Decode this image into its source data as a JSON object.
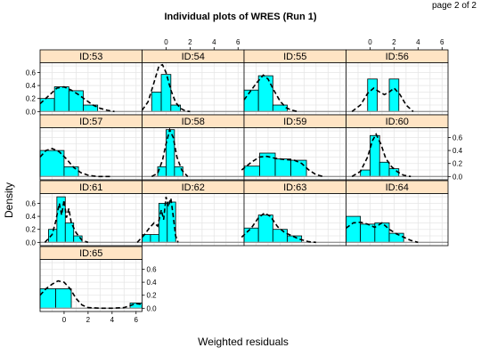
{
  "page_label": "page 2 of 2",
  "chart_data": {
    "type": "histogram-density-panels",
    "title": "Individual plots of WRES (Run 1)",
    "xlabel": "Weighted residuals",
    "ylabel": "Density",
    "xlim": [
      -2,
      6.5
    ],
    "ylim": [
      -0.05,
      0.75
    ],
    "x_ticks": [
      0,
      2,
      4,
      6
    ],
    "y_ticks": [
      0.0,
      0.2,
      0.4,
      0.6
    ],
    "bin_edges": [
      -2,
      -1,
      0,
      1,
      2,
      3,
      4,
      5,
      6,
      7
    ],
    "colors": {
      "bar": "#00ffff",
      "strip": "#ffe4c4",
      "density": "#000000",
      "grid": "#e6e6e6"
    },
    "panels": [
      {
        "id": "ID:53",
        "bins": [
          {
            "x0": -2,
            "x1": -0.8,
            "d": 0.2
          },
          {
            "x0": -0.8,
            "x1": 0.4,
            "d": 0.38
          },
          {
            "x0": 0.4,
            "x1": 1.6,
            "d": 0.32
          },
          {
            "x0": 1.6,
            "x1": 2.8,
            "d": 0.1
          }
        ],
        "density": [
          [
            -2,
            0.12
          ],
          [
            -1.3,
            0.24
          ],
          [
            -0.6,
            0.36
          ],
          [
            0,
            0.38
          ],
          [
            0.6,
            0.33
          ],
          [
            1.2,
            0.26
          ],
          [
            1.8,
            0.18
          ],
          [
            2.4,
            0.1
          ],
          [
            3,
            0.05
          ],
          [
            3.6,
            0.02
          ],
          [
            4.2,
            0.0
          ]
        ]
      },
      {
        "id": "ID:54",
        "bins": [
          {
            "x0": -1.2,
            "x1": -0.4,
            "d": 0.3
          },
          {
            "x0": -0.4,
            "x1": 0.4,
            "d": 0.57
          },
          {
            "x0": 0.4,
            "x1": 1.2,
            "d": 0.1
          }
        ],
        "density": [
          [
            -2,
            0.02
          ],
          [
            -1.5,
            0.15
          ],
          [
            -1.0,
            0.45
          ],
          [
            -0.6,
            0.7
          ],
          [
            -0.3,
            0.72
          ],
          [
            0,
            0.6
          ],
          [
            0.4,
            0.33
          ],
          [
            0.8,
            0.14
          ],
          [
            1.2,
            0.05
          ],
          [
            1.6,
            0.01
          ],
          [
            2,
            0.0
          ]
        ]
      },
      {
        "id": "ID:55",
        "bins": [
          {
            "x0": -2,
            "x1": -0.8,
            "d": 0.33
          },
          {
            "x0": -0.8,
            "x1": 0.4,
            "d": 0.55
          },
          {
            "x0": 0.4,
            "x1": 1.6,
            "d": 0.1
          }
        ],
        "density": [
          [
            -2,
            0.18
          ],
          [
            -1.6,
            0.28
          ],
          [
            -1.0,
            0.43
          ],
          [
            -0.4,
            0.56
          ],
          [
            0,
            0.5
          ],
          [
            0.5,
            0.32
          ],
          [
            1,
            0.16
          ],
          [
            1.5,
            0.06
          ],
          [
            2,
            0.02
          ],
          [
            2.5,
            0.0
          ]
        ]
      },
      {
        "id": "ID:56",
        "bins": [
          {
            "x0": -0.2,
            "x1": 0.6,
            "d": 0.5
          },
          {
            "x0": 1.6,
            "x1": 2.4,
            "d": 0.5
          }
        ],
        "density": [
          [
            -1.5,
            0.0
          ],
          [
            -0.8,
            0.1
          ],
          [
            -0.2,
            0.28
          ],
          [
            0.3,
            0.36
          ],
          [
            0.8,
            0.3
          ],
          [
            1.2,
            0.26
          ],
          [
            1.6,
            0.3
          ],
          [
            2.0,
            0.36
          ],
          [
            2.5,
            0.26
          ],
          [
            3.0,
            0.1
          ],
          [
            3.6,
            0.0
          ]
        ]
      },
      {
        "id": "ID:57",
        "bins": [
          {
            "x0": -2,
            "x1": 0,
            "d": 0.4
          },
          {
            "x0": 0,
            "x1": 1.2,
            "d": 0.15
          }
        ],
        "density": [
          [
            -2,
            0.3
          ],
          [
            -1.5,
            0.4
          ],
          [
            -1.0,
            0.43
          ],
          [
            -0.4,
            0.38
          ],
          [
            0.2,
            0.27
          ],
          [
            0.8,
            0.14
          ],
          [
            1.4,
            0.06
          ],
          [
            2,
            0.02
          ],
          [
            2.8,
            0.0
          ],
          [
            4,
            0.0
          ]
        ]
      },
      {
        "id": "ID:58",
        "bins": [
          {
            "x0": -0.7,
            "x1": 0,
            "d": 0.15
          },
          {
            "x0": 0,
            "x1": 0.7,
            "d": 0.72
          },
          {
            "x0": 0.7,
            "x1": 1.4,
            "d": 0.15
          }
        ],
        "density": [
          [
            -1.2,
            0.0
          ],
          [
            -0.7,
            0.05
          ],
          [
            -0.3,
            0.25
          ],
          [
            0,
            0.5
          ],
          [
            0.3,
            0.72
          ],
          [
            0.6,
            0.6
          ],
          [
            0.9,
            0.3
          ],
          [
            1.3,
            0.1
          ],
          [
            1.8,
            0.0
          ]
        ]
      },
      {
        "id": "ID:59",
        "bins": [
          {
            "x0": -2,
            "x1": -0.7,
            "d": 0.16
          },
          {
            "x0": -0.7,
            "x1": 0.6,
            "d": 0.36
          },
          {
            "x0": 0.6,
            "x1": 1.9,
            "d": 0.27
          },
          {
            "x0": 1.9,
            "x1": 3.2,
            "d": 0.25
          }
        ],
        "density": [
          [
            -2.2,
            0.1
          ],
          [
            -1.4,
            0.22
          ],
          [
            -0.7,
            0.3
          ],
          [
            -0.1,
            0.31
          ],
          [
            0.6,
            0.28
          ],
          [
            1.4,
            0.26
          ],
          [
            2.2,
            0.25
          ],
          [
            2.8,
            0.2
          ],
          [
            3.4,
            0.1
          ],
          [
            4.0,
            0.03
          ],
          [
            4.6,
            0.0
          ]
        ]
      },
      {
        "id": "ID:60",
        "bins": [
          {
            "x0": -0.8,
            "x1": 0,
            "d": 0.1
          },
          {
            "x0": 0,
            "x1": 0.8,
            "d": 0.63
          },
          {
            "x0": 0.8,
            "x1": 1.6,
            "d": 0.22
          },
          {
            "x0": 1.6,
            "x1": 2.4,
            "d": 0.12
          }
        ],
        "density": [
          [
            -1.5,
            0.0
          ],
          [
            -0.8,
            0.08
          ],
          [
            -0.2,
            0.3
          ],
          [
            0.2,
            0.55
          ],
          [
            0.5,
            0.65
          ],
          [
            0.9,
            0.5
          ],
          [
            1.3,
            0.28
          ],
          [
            1.8,
            0.15
          ],
          [
            2.3,
            0.07
          ],
          [
            2.8,
            0.02
          ],
          [
            3.4,
            0.0
          ]
        ]
      },
      {
        "id": "ID:61",
        "bins": [
          {
            "x0": -1.3,
            "x1": -0.6,
            "d": 0.2
          },
          {
            "x0": -0.6,
            "x1": 0.1,
            "d": 0.7
          },
          {
            "x0": 0.1,
            "x1": 0.8,
            "d": 0.3
          },
          {
            "x0": 0.8,
            "x1": 1.5,
            "d": 0.1
          }
        ],
        "density": [
          [
            -1.6,
            0.0
          ],
          [
            -1.0,
            0.12
          ],
          [
            -0.7,
            0.32
          ],
          [
            -0.4,
            0.6
          ],
          [
            -0.2,
            0.42
          ],
          [
            0,
            0.65
          ],
          [
            0.2,
            0.38
          ],
          [
            0.4,
            0.52
          ],
          [
            0.6,
            0.3
          ],
          [
            1.0,
            0.15
          ],
          [
            1.5,
            0.03
          ],
          [
            2,
            0.0
          ]
        ]
      },
      {
        "id": "ID:62",
        "bins": [
          {
            "x0": -2,
            "x1": -1.3,
            "d": 0.12
          },
          {
            "x0": -1.3,
            "x1": -0.6,
            "d": 0.12
          },
          {
            "x0": -0.6,
            "x1": 0.1,
            "d": 0.6
          },
          {
            "x0": 0.1,
            "x1": 0.8,
            "d": 0.62
          }
        ],
        "density": [
          [
            -2.4,
            0.0
          ],
          [
            -1.8,
            0.12
          ],
          [
            -1.4,
            0.22
          ],
          [
            -1.0,
            0.3
          ],
          [
            -0.7,
            0.25
          ],
          [
            -0.4,
            0.5
          ],
          [
            -0.2,
            0.35
          ],
          [
            0,
            0.7
          ],
          [
            0.2,
            0.55
          ],
          [
            0.4,
            0.68
          ],
          [
            0.6,
            0.4
          ],
          [
            0.8,
            0.1
          ],
          [
            1.0,
            0.0
          ]
        ]
      },
      {
        "id": "ID:63",
        "bins": [
          {
            "x0": -2,
            "x1": -0.8,
            "d": 0.22
          },
          {
            "x0": -0.8,
            "x1": 0.4,
            "d": 0.42
          },
          {
            "x0": 0.4,
            "x1": 1.6,
            "d": 0.2
          },
          {
            "x0": 1.6,
            "x1": 2.8,
            "d": 0.1
          }
        ],
        "density": [
          [
            -2.2,
            0.08
          ],
          [
            -1.4,
            0.22
          ],
          [
            -0.8,
            0.38
          ],
          [
            -0.3,
            0.45
          ],
          [
            0.2,
            0.4
          ],
          [
            0.8,
            0.24
          ],
          [
            1.4,
            0.15
          ],
          [
            2.0,
            0.1
          ],
          [
            2.6,
            0.05
          ],
          [
            3.4,
            0.01
          ],
          [
            4,
            0.0
          ]
        ]
      },
      {
        "id": "ID:64",
        "bins": [
          {
            "x0": -2,
            "x1": -0.8,
            "d": 0.4
          },
          {
            "x0": -0.8,
            "x1": 0.4,
            "d": 0.28
          },
          {
            "x0": 0.4,
            "x1": 1.6,
            "d": 0.3
          },
          {
            "x0": 1.6,
            "x1": 2.8,
            "d": 0.14
          }
        ],
        "density": [
          [
            -2,
            0.22
          ],
          [
            -1.4,
            0.3
          ],
          [
            -0.8,
            0.31
          ],
          [
            -0.2,
            0.28
          ],
          [
            0.4,
            0.23
          ],
          [
            1.0,
            0.3
          ],
          [
            1.6,
            0.2
          ],
          [
            2.2,
            0.13
          ],
          [
            2.8,
            0.08
          ],
          [
            3.4,
            0.03
          ],
          [
            4.0,
            0.0
          ]
        ]
      },
      {
        "id": "ID:65",
        "bins": [
          {
            "x0": -2,
            "x1": -0.7,
            "d": 0.3
          },
          {
            "x0": -0.7,
            "x1": 0.6,
            "d": 0.3
          },
          {
            "x0": 5.5,
            "x1": 6.5,
            "d": 0.08
          }
        ],
        "density": [
          [
            -2,
            0.2
          ],
          [
            -1.5,
            0.3
          ],
          [
            -1.0,
            0.37
          ],
          [
            -0.5,
            0.42
          ],
          [
            0,
            0.4
          ],
          [
            0.5,
            0.3
          ],
          [
            1,
            0.15
          ],
          [
            1.5,
            0.05
          ],
          [
            2,
            0.01
          ],
          [
            3,
            0.0
          ],
          [
            4,
            0.0
          ],
          [
            5,
            0.01
          ],
          [
            5.5,
            0.04
          ],
          [
            6,
            0.07
          ],
          [
            6.5,
            0.06
          ]
        ]
      }
    ]
  }
}
